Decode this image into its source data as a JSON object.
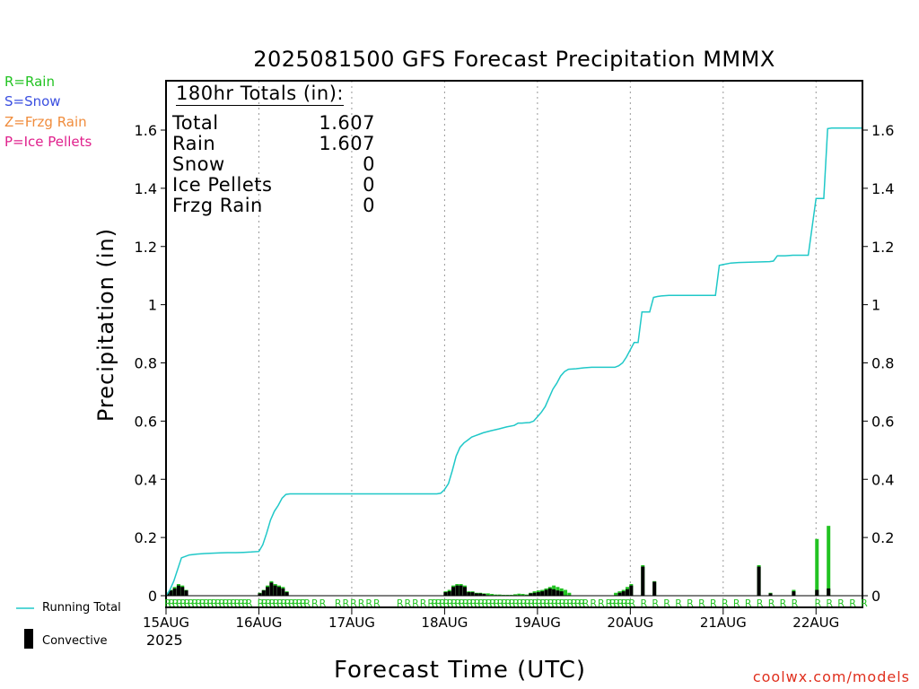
{
  "title": "2025081500 GFS Forecast Precipitation MMMX",
  "ptype_legend": [
    {
      "label": "R=Rain",
      "color": "#22c322"
    },
    {
      "label": "S=Snow",
      "color": "#3b4fe0"
    },
    {
      "label": "Z=Frzg Rain",
      "color": "#f08c3c"
    },
    {
      "label": "P=Ice Pellets",
      "color": "#e0208c"
    }
  ],
  "totals": {
    "header": "180hr Totals (in):",
    "rows": [
      {
        "label": "Total",
        "value": "1.607"
      },
      {
        "label": "Rain",
        "value": "1.607"
      },
      {
        "label": "Snow",
        "value": "0"
      },
      {
        "label": "Ice Pellets",
        "value": "0"
      },
      {
        "label": "Frzg Rain",
        "value": "0"
      }
    ]
  },
  "key": {
    "running_total": "Running Total",
    "convective": "Convective",
    "running_total_color": "#20c8c8"
  },
  "year": "2025",
  "credit": "coolwx.com/models",
  "chart_data": {
    "type": "line",
    "title": "2025081500 GFS Forecast Precipitation MMMX",
    "xlabel": "Forecast Time (UTC)",
    "ylabel": "Precipitation (in)",
    "x_range_hours": [
      0,
      180
    ],
    "ylim": [
      0,
      1.76
    ],
    "y_ticks": [
      0,
      0.2,
      0.4,
      0.6,
      0.8,
      1,
      1.2,
      1.4,
      1.6
    ],
    "y_tick_labels": [
      "0",
      "0.2",
      "0.4",
      "0.6",
      "0.8",
      "1",
      "1.2",
      "1.4",
      "1.6"
    ],
    "x_ticks_hours": [
      0,
      24,
      48,
      72,
      96,
      120,
      144,
      168
    ],
    "x_tick_labels": [
      "15AUG",
      "16AUG",
      "17AUG",
      "18AUG",
      "19AUG",
      "20AUG",
      "21AUG",
      "22AUG"
    ],
    "grid": "vertical dotted at day boundaries",
    "series": [
      {
        "name": "Running Total",
        "color": "#20c8c8",
        "x": [
          0,
          1,
          2,
          3,
          4,
          6,
          8,
          10,
          12,
          14,
          16,
          18,
          20,
          22,
          24,
          25,
          26,
          27,
          28,
          29,
          30,
          31,
          32,
          34,
          40,
          48,
          56,
          64,
          70,
          71,
          72,
          73,
          74,
          75,
          76,
          77,
          78,
          79,
          80,
          81,
          82,
          84,
          86,
          88,
          90,
          91,
          92,
          93,
          94,
          95,
          96,
          97,
          98,
          99,
          100,
          101,
          102,
          103,
          104,
          106,
          108,
          110,
          114,
          116,
          117,
          118,
          119,
          120,
          121,
          122,
          123,
          124,
          125,
          126,
          127,
          128,
          130,
          136,
          140,
          141,
          142,
          143,
          144,
          146,
          148,
          156,
          157,
          158,
          159,
          160,
          162,
          166,
          168,
          169,
          170,
          171,
          172,
          174,
          180
        ],
        "y": [
          0,
          0.02,
          0.05,
          0.09,
          0.13,
          0.14,
          0.143,
          0.145,
          0.146,
          0.147,
          0.148,
          0.148,
          0.149,
          0.15,
          0.152,
          0.175,
          0.215,
          0.26,
          0.29,
          0.31,
          0.335,
          0.348,
          0.35,
          0.35,
          0.35,
          0.35,
          0.35,
          0.35,
          0.35,
          0.352,
          0.365,
          0.385,
          0.43,
          0.48,
          0.51,
          0.525,
          0.535,
          0.545,
          0.55,
          0.555,
          0.56,
          0.567,
          0.573,
          0.58,
          0.585,
          0.593,
          0.593,
          0.594,
          0.595,
          0.6,
          0.615,
          0.63,
          0.65,
          0.68,
          0.71,
          0.73,
          0.755,
          0.77,
          0.778,
          0.78,
          0.783,
          0.785,
          0.785,
          0.785,
          0.79,
          0.8,
          0.82,
          0.845,
          0.87,
          0.87,
          0.975,
          0.975,
          0.975,
          1.025,
          1.028,
          1.03,
          1.032,
          1.032,
          1.032,
          1.032,
          1.032,
          1.135,
          1.138,
          1.143,
          1.145,
          1.148,
          1.15,
          1.168,
          1.168,
          1.168,
          1.17,
          1.17,
          1.365,
          1.365,
          1.365,
          1.605,
          1.607,
          1.607,
          1.607
        ]
      },
      {
        "name": "Rain",
        "type": "bar",
        "color": "#22c322",
        "x": [
          0,
          1,
          2,
          3,
          4,
          5,
          24,
          25,
          26,
          27,
          28,
          29,
          30,
          31,
          72,
          73,
          74,
          75,
          76,
          77,
          78,
          79,
          80,
          81,
          82,
          83,
          84,
          85,
          86,
          87,
          88,
          89,
          90,
          91,
          92,
          93,
          94,
          95,
          96,
          97,
          98,
          99,
          100,
          101,
          102,
          103,
          104,
          116,
          117,
          118,
          119,
          120,
          123,
          126,
          153,
          156,
          162,
          168,
          171
        ],
        "values": [
          0.01,
          0.02,
          0.03,
          0.04,
          0.035,
          0.02,
          0.01,
          0.02,
          0.035,
          0.05,
          0.04,
          0.035,
          0.03,
          0.015,
          0.015,
          0.02,
          0.035,
          0.04,
          0.04,
          0.035,
          0.015,
          0.015,
          0.01,
          0.01,
          0.008,
          0.008,
          0.006,
          0.004,
          0.004,
          0.003,
          0.003,
          0.003,
          0.005,
          0.007,
          0.006,
          0.004,
          0.01,
          0.015,
          0.018,
          0.02,
          0.025,
          0.03,
          0.035,
          0.03,
          0.025,
          0.02,
          0.01,
          0.01,
          0.015,
          0.02,
          0.03,
          0.04,
          0.105,
          0.05,
          0.105,
          0.01,
          0.02,
          0.195,
          0.24
        ]
      },
      {
        "name": "Convective",
        "type": "bar",
        "color": "#000000",
        "x": [
          0,
          1,
          2,
          3,
          4,
          5,
          24,
          25,
          26,
          27,
          28,
          29,
          30,
          31,
          72,
          73,
          74,
          75,
          76,
          77,
          78,
          79,
          80,
          81,
          82,
          94,
          95,
          96,
          97,
          98,
          99,
          100,
          101,
          102,
          117,
          118,
          119,
          120,
          123,
          126,
          153,
          156,
          162,
          168,
          171
        ],
        "values": [
          0.008,
          0.018,
          0.025,
          0.035,
          0.03,
          0.018,
          0.008,
          0.018,
          0.03,
          0.045,
          0.035,
          0.03,
          0.025,
          0.012,
          0.012,
          0.015,
          0.03,
          0.035,
          0.035,
          0.03,
          0.012,
          0.012,
          0.008,
          0.008,
          0.006,
          0.008,
          0.01,
          0.012,
          0.015,
          0.02,
          0.025,
          0.022,
          0.018,
          0.015,
          0.01,
          0.015,
          0.022,
          0.035,
          0.1,
          0.048,
          0.1,
          0.008,
          0.015,
          0.02,
          0.025
        ]
      }
    ],
    "ptype_markers": {
      "label": "R",
      "color": "#22c322",
      "hours": [
        0,
        1,
        2,
        3,
        4,
        5,
        6,
        7,
        8,
        9,
        10,
        11,
        12,
        13,
        14,
        15,
        16,
        17,
        18,
        19,
        20,
        21,
        24,
        25,
        26,
        27,
        28,
        29,
        30,
        31,
        32,
        33,
        34,
        35,
        36,
        38,
        40,
        44,
        46,
        48,
        50,
        52,
        54,
        60,
        62,
        64,
        66,
        68,
        69,
        70,
        71,
        72,
        73,
        74,
        75,
        76,
        77,
        78,
        79,
        80,
        81,
        82,
        83,
        84,
        85,
        86,
        87,
        88,
        89,
        90,
        91,
        92,
        93,
        94,
        95,
        96,
        97,
        98,
        99,
        100,
        101,
        102,
        103,
        104,
        105,
        106,
        107,
        108,
        110,
        112,
        114,
        115,
        116,
        117,
        118,
        119,
        120,
        123,
        126,
        129,
        132,
        135,
        138,
        141,
        144,
        147,
        150,
        153,
        156,
        159,
        162,
        168,
        171,
        174,
        177,
        180
      ]
    }
  }
}
